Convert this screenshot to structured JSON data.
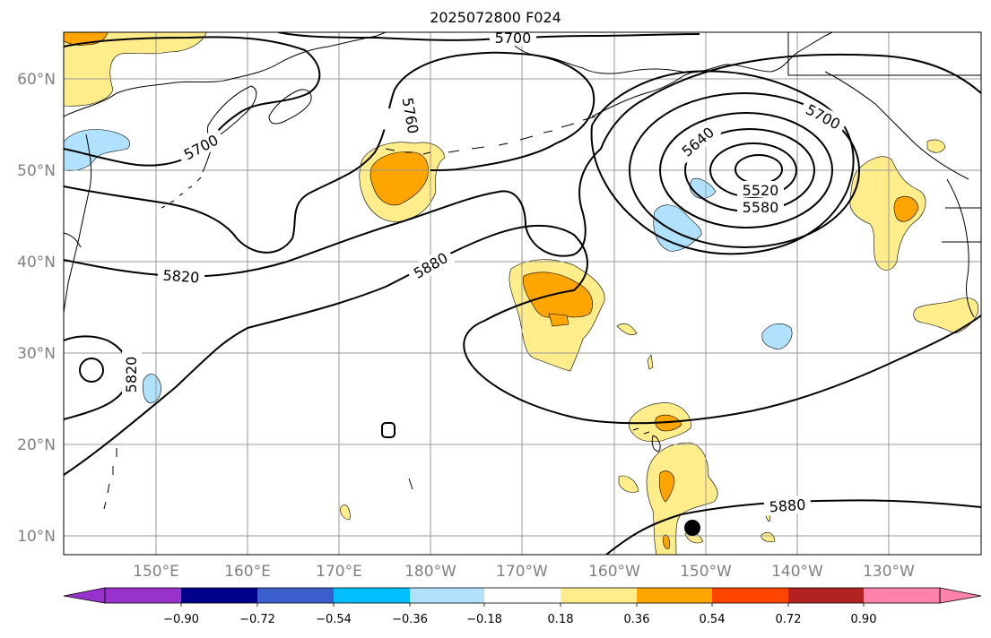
{
  "title": "2025072800 F024",
  "lat_labels": [
    "60°N",
    "50°N",
    "40°N",
    "30°N",
    "20°N",
    "10°N"
  ],
  "lon_labels": [
    "150°E",
    "160°E",
    "170°E",
    "180°W",
    "170°W",
    "160°W",
    "150°W",
    "140°W",
    "130°W"
  ],
  "contour_labels": [
    "5700",
    "5760",
    "5700",
    "5640",
    "5700",
    "5520",
    "5580",
    "5820",
    "5880",
    "5820",
    "5880"
  ],
  "colorbar": {
    "ticks": [
      "−0.90",
      "−0.72",
      "−0.54",
      "−0.36",
      "−0.18",
      "0.18",
      "0.36",
      "0.54",
      "0.72",
      "0.90"
    ],
    "colors": [
      "#9932CC",
      "#00008B",
      "#3A5FCD",
      "#00BFFF",
      "#B0E2FF",
      "#FFFFFF",
      "#FFEC8B",
      "#FFA500",
      "#FF4500",
      "#B22222",
      "#FF82AB"
    ]
  },
  "fill_colors": {
    "light_yellow": "#FFEC8B",
    "orange": "#FFA500",
    "light_blue": "#B0E2FF"
  }
}
